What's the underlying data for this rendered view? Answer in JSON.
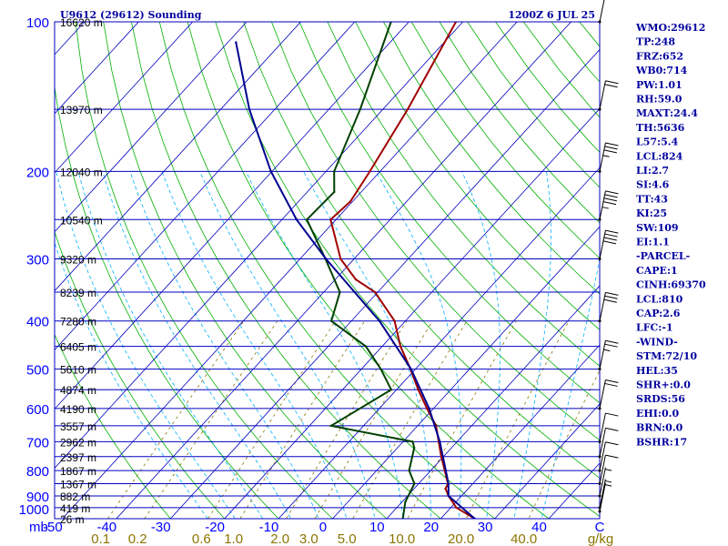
{
  "header": {
    "station": "U9612 (29612) Sounding",
    "time": "1200Z  6 JUL 25"
  },
  "chart_data": {
    "type": "skew-t",
    "y_unit": "mb",
    "pressure_levels": [
      100,
      200,
      300,
      400,
      500,
      600,
      700,
      800,
      900,
      1000
    ],
    "pressure_labels": [
      "100",
      "200",
      "300",
      "400",
      "500",
      "600",
      "700",
      "800",
      "900",
      "1000"
    ],
    "temperature_axis": {
      "ticks": [
        -50,
        -40,
        -30,
        -20,
        -10,
        0,
        10,
        20,
        30,
        40
      ],
      "tick_labels": [
        "-50",
        "-40",
        "-30",
        "-20",
        "-10",
        "0",
        "10",
        "20",
        "30",
        "40"
      ],
      "unit": "C"
    },
    "mixing_ratio_axis": {
      "values": [
        0.1,
        0.2,
        0.6,
        1.0,
        2.0,
        3.0,
        5.0,
        10.0,
        20.0,
        40.0
      ],
      "labels": [
        "0.1",
        "0.2",
        "0.6",
        "1.0",
        "2.0",
        "3.0",
        "5.0",
        "10.0",
        "20.0",
        "40.0"
      ],
      "unit": "g/kg"
    },
    "height_levels": [
      {
        "p": 100,
        "label": "16620 m"
      },
      {
        "p": 150,
        "label": "13970 m"
      },
      {
        "p": 200,
        "label": "12040 m"
      },
      {
        "p": 250,
        "label": "10540 m"
      },
      {
        "p": 300,
        "label": "9320 m"
      },
      {
        "p": 350,
        "label": "8239 m"
      },
      {
        "p": 400,
        "label": "7280 m"
      },
      {
        "p": 450,
        "label": "6405 m"
      },
      {
        "p": 500,
        "label": "5610 m"
      },
      {
        "p": 550,
        "label": "4874 m"
      },
      {
        "p": 600,
        "label": "4190 m"
      },
      {
        "p": 650,
        "label": "3557 m"
      },
      {
        "p": 700,
        "label": "2962 m"
      },
      {
        "p": 750,
        "label": "2397 m"
      },
      {
        "p": 800,
        "label": "1867 m"
      },
      {
        "p": 850,
        "label": "1367 m"
      },
      {
        "p": 900,
        "label": "882 m"
      },
      {
        "p": 950,
        "label": "419 m"
      },
      {
        "p": 1000,
        "label": "26 m"
      }
    ],
    "series": [
      {
        "color": "#a00000",
        "points": [
          {
            "p": 1000,
            "t": 26.3
          },
          {
            "p": 950,
            "t": 21.0
          },
          {
            "p": 900,
            "t": 17.6
          },
          {
            "p": 870,
            "t": 15.8
          },
          {
            "p": 850,
            "t": 15.4
          },
          {
            "p": 800,
            "t": 12.6
          },
          {
            "p": 750,
            "t": 9.6
          },
          {
            "p": 700,
            "t": 6.6
          },
          {
            "p": 650,
            "t": 3.4
          },
          {
            "p": 600,
            "t": -1.2
          },
          {
            "p": 550,
            "t": -6.0
          },
          {
            "p": 500,
            "t": -10.9
          },
          {
            "p": 450,
            "t": -16.6
          },
          {
            "p": 400,
            "t": -22.0
          },
          {
            "p": 350,
            "t": -30.5
          },
          {
            "p": 330,
            "t": -36.2
          },
          {
            "p": 300,
            "t": -42.5
          },
          {
            "p": 250,
            "t": -51.0
          },
          {
            "p": 230,
            "t": -50.4
          },
          {
            "p": 200,
            "t": -51.9
          },
          {
            "p": 150,
            "t": -55.4
          },
          {
            "p": 100,
            "t": -61.3
          }
        ]
      },
      {
        "color": "#004000",
        "points": [
          {
            "p": 1000,
            "t": 13.0
          },
          {
            "p": 925,
            "t": 10.6
          },
          {
            "p": 850,
            "t": 9.2
          },
          {
            "p": 800,
            "t": 6.0
          },
          {
            "p": 720,
            "t": 3.1
          },
          {
            "p": 700,
            "t": 1.8
          },
          {
            "p": 650,
            "t": -16.0
          },
          {
            "p": 550,
            "t": -11.0
          },
          {
            "p": 500,
            "t": -16.4
          },
          {
            "p": 450,
            "t": -23.0
          },
          {
            "p": 400,
            "t": -33.7
          },
          {
            "p": 350,
            "t": -37.0
          },
          {
            "p": 300,
            "t": -45.3
          },
          {
            "p": 250,
            "t": -55.4
          },
          {
            "p": 220,
            "t": -55.0
          },
          {
            "p": 200,
            "t": -58.5
          },
          {
            "p": 150,
            "t": -64.2
          },
          {
            "p": 100,
            "t": -73.3
          }
        ]
      },
      {
        "color": "#000090",
        "points": [
          {
            "p": 1000,
            "t": 26.3
          },
          {
            "p": 900,
            "t": 17.6
          },
          {
            "p": 850,
            "t": 15.5
          },
          {
            "p": 800,
            "t": 12.8
          },
          {
            "p": 700,
            "t": 6.8
          },
          {
            "p": 600,
            "t": -0.8
          },
          {
            "p": 500,
            "t": -10.8
          },
          {
            "p": 400,
            "t": -24.8
          },
          {
            "p": 300,
            "t": -45.2
          },
          {
            "p": 250,
            "t": -57.3
          },
          {
            "p": 200,
            "t": -70.2
          },
          {
            "p": 150,
            "t": -84.7
          },
          {
            "p": 110,
            "t": -98.5
          }
        ]
      }
    ],
    "wind_barbs": [
      {
        "p": 1000,
        "flags": 0,
        "full": 0,
        "half": 1
      },
      {
        "p": 950,
        "flags": 0,
        "full": 0,
        "half": 1
      },
      {
        "p": 900,
        "flags": 0,
        "full": 0,
        "half": 1
      },
      {
        "p": 850,
        "flags": 0,
        "full": 1,
        "half": 0
      },
      {
        "p": 800,
        "flags": 0,
        "full": 1,
        "half": 0
      },
      {
        "p": 750,
        "flags": 0,
        "full": 1,
        "half": 0
      },
      {
        "p": 700,
        "flags": 0,
        "full": 1,
        "half": 0
      },
      {
        "p": 600,
        "flags": 0,
        "full": 2,
        "half": 0
      },
      {
        "p": 500,
        "flags": 0,
        "full": 2,
        "half": 1
      },
      {
        "p": 400,
        "flags": 0,
        "full": 3,
        "half": 0
      },
      {
        "p": 300,
        "flags": 0,
        "full": 4,
        "half": 0
      },
      {
        "p": 250,
        "flags": 0,
        "full": 4,
        "half": 1
      },
      {
        "p": 200,
        "flags": 0,
        "full": 3,
        "half": 1
      },
      {
        "p": 150,
        "flags": 0,
        "full": 2,
        "half": 0
      },
      {
        "p": 100,
        "flags": 0,
        "full": 1,
        "half": 0
      }
    ],
    "indices": [
      "WMO:29612",
      "TP:248",
      "FRZ:652",
      "WB0:714",
      "PW:1.01",
      "RH:59.0",
      "MAXT:24.4",
      "TH:5636",
      "L57:5.4",
      "LCL:824",
      "LI:2.7",
      "SI:4.6",
      "TT:43",
      "KI:25",
      "SW:109",
      "EI:1.1",
      "-PARCEL-",
      "CAPE:1",
      "CINH:69370",
      "LCL:810",
      "CAP:2.6",
      "LFC:-1",
      "-WIND-",
      "STM:72/10",
      "HEL:35",
      "SHR+:0.0",
      "SRDS:56",
      "EHI:0.0",
      "BRN:0.0",
      "BSHR:17"
    ]
  },
  "colors": {
    "isobar": "#0000c0",
    "skewed_isotherm": "#0000c0",
    "dry_adiabat": "#00b000",
    "moist_adiabat": "#00b0ff",
    "mixing_ratio": "#8b7500",
    "index_text": "#0000a0"
  }
}
